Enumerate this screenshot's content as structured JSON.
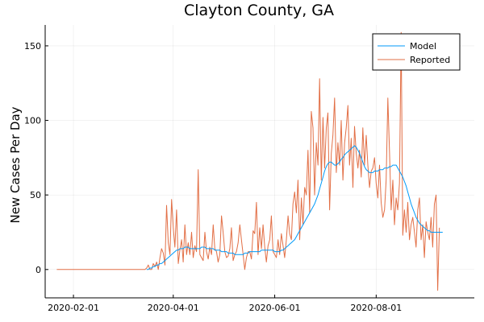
{
  "chart_data": {
    "type": "line",
    "title": "Clayton County, GA",
    "xlabel": "",
    "ylabel": "New Cases Per Day",
    "x_axis_type": "date",
    "xlim": [
      "2020-01-15",
      "2020-09-29"
    ],
    "ylim": [
      -19,
      164
    ],
    "x_ticks": [
      "2020-02-01",
      "2020-04-01",
      "2020-06-01",
      "2020-08-01"
    ],
    "y_ticks": [
      0,
      50,
      100,
      150
    ],
    "grid": true,
    "legend_position": "top-right",
    "series": [
      {
        "name": "Model",
        "color": "#009af9",
        "start_date": "2020-03-16",
        "end_date": "2020-09-14",
        "values": [
          0,
          0,
          1,
          1,
          2,
          2,
          3,
          3,
          4,
          4,
          5,
          6,
          7,
          8,
          9,
          10,
          11,
          12,
          13,
          13,
          14,
          14,
          14,
          15,
          15,
          15,
          14,
          14,
          14,
          14,
          14,
          14,
          14,
          15,
          15,
          15,
          14,
          14,
          14,
          14,
          14,
          13,
          13,
          13,
          13,
          12,
          12,
          12,
          12,
          11,
          11,
          11,
          11,
          10,
          10,
          10,
          10,
          10,
          10,
          11,
          11,
          11,
          12,
          12,
          12,
          12,
          12,
          12,
          12,
          13,
          13,
          13,
          13,
          13,
          13,
          13,
          13,
          12,
          12,
          12,
          12,
          13,
          13,
          14,
          15,
          16,
          17,
          18,
          19,
          20,
          22,
          24,
          26,
          28,
          30,
          32,
          34,
          36,
          38,
          40,
          42,
          44,
          47,
          50,
          54,
          58,
          62,
          66,
          69,
          71,
          72,
          72,
          71,
          70,
          70,
          71,
          72,
          74,
          75,
          77,
          78,
          79,
          80,
          81,
          82,
          83,
          82,
          80,
          78,
          75,
          72,
          69,
          67,
          66,
          65,
          65,
          65,
          66,
          66,
          66,
          67,
          67,
          67,
          68,
          68,
          68,
          69,
          69,
          70,
          70,
          70,
          68,
          66,
          64,
          62,
          59,
          56,
          52,
          48,
          44,
          41,
          38,
          35,
          33,
          31,
          30,
          29,
          28,
          27,
          26,
          26,
          25,
          25,
          25,
          25,
          25,
          25,
          25,
          25
        ]
      },
      {
        "name": "Reported",
        "color": "#e26f46",
        "start_date": "2020-01-22",
        "end_date": "2020-09-27",
        "values": [
          0,
          0,
          0,
          0,
          0,
          0,
          0,
          0,
          0,
          0,
          0,
          0,
          0,
          0,
          0,
          0,
          0,
          0,
          0,
          0,
          0,
          0,
          0,
          0,
          0,
          0,
          0,
          0,
          0,
          0,
          0,
          0,
          0,
          0,
          0,
          0,
          0,
          0,
          0,
          0,
          0,
          0,
          0,
          0,
          0,
          0,
          0,
          0,
          0,
          0,
          0,
          0,
          0,
          0,
          1,
          3,
          0,
          0,
          4,
          2,
          5,
          0,
          8,
          14,
          11,
          3,
          43,
          18,
          10,
          47,
          28,
          15,
          40,
          4,
          13,
          20,
          5,
          30,
          10,
          18,
          10,
          25,
          8,
          16,
          12,
          67,
          10,
          8,
          6,
          25,
          12,
          7,
          15,
          10,
          30,
          14,
          12,
          5,
          10,
          36,
          25,
          12,
          8,
          9,
          14,
          28,
          6,
          10,
          12,
          18,
          30,
          20,
          10,
          0,
          8,
          12,
          12,
          7,
          26,
          24,
          45,
          10,
          28,
          14,
          30,
          15,
          5,
          16,
          20,
          36,
          12,
          10,
          8,
          20,
          10,
          24,
          16,
          8,
          20,
          36,
          24,
          20,
          44,
          52,
          38,
          60,
          20,
          48,
          30,
          55,
          50,
          80,
          38,
          106,
          95,
          50,
          85,
          70,
          128,
          60,
          102,
          68,
          95,
          105,
          40,
          78,
          90,
          115,
          65,
          85,
          70,
          100,
          60,
          85,
          95,
          110,
          70,
          88,
          55,
          96,
          78,
          68,
          80,
          62,
          95,
          70,
          90,
          70,
          55,
          66,
          68,
          75,
          58,
          48,
          70,
          45,
          35,
          40,
          60,
          115,
          80,
          40,
          60,
          30,
          48,
          40,
          58,
          159,
          23,
          40,
          25,
          45,
          20,
          30,
          35,
          25,
          15,
          40,
          48,
          20,
          30,
          8,
          32,
          25,
          20,
          35,
          15,
          44,
          50,
          -14,
          28
        ]
      }
    ]
  }
}
